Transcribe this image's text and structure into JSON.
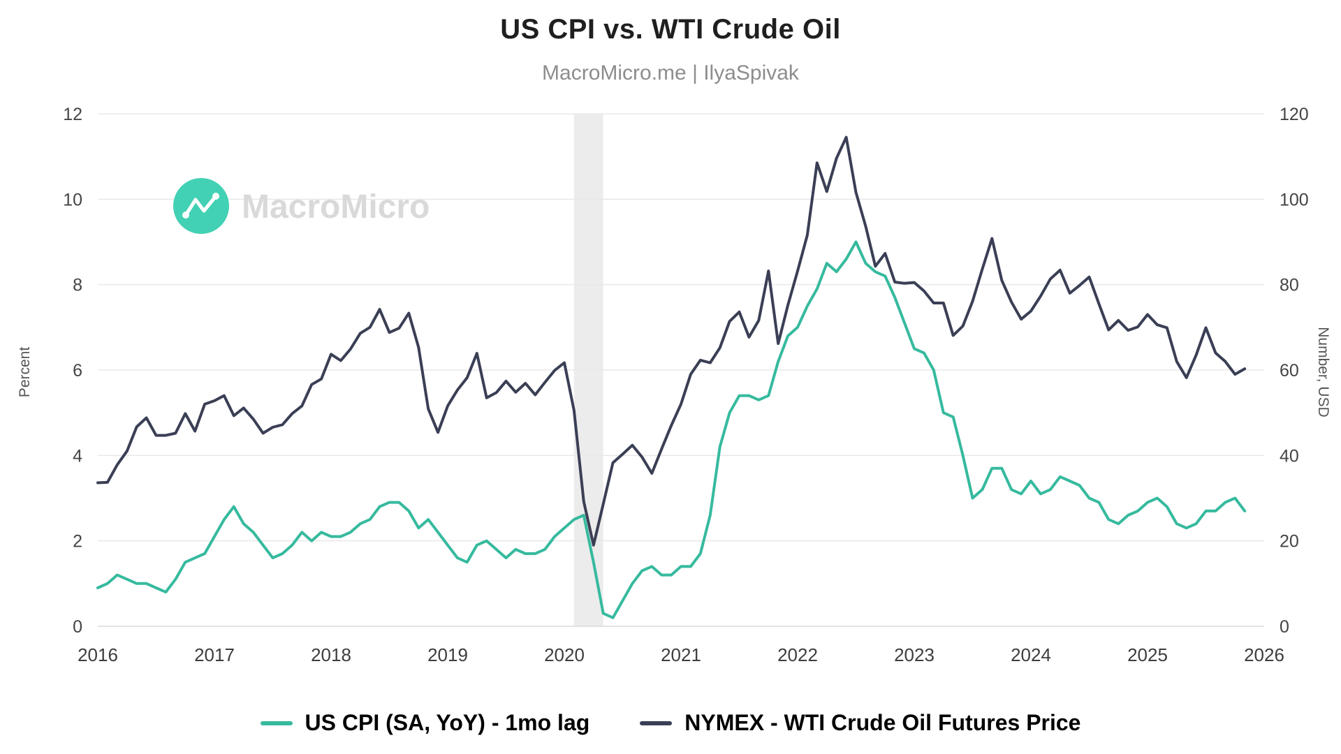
{
  "header": {
    "title": "US CPI vs. WTI Crude Oil",
    "subtitle": "MacroMicro.me | IlyaSpivak"
  },
  "watermark": {
    "text": "MacroMicro",
    "logo_color": "#42d1b4",
    "text_color": "#d9d9d9"
  },
  "chart_data": {
    "type": "line",
    "title": "US CPI vs. WTI Crude Oil",
    "subtitle": "MacroMicro.me | IlyaSpivak",
    "grid": "horizontal",
    "legend_position": "bottom",
    "x_axis": {
      "start_year": 2016,
      "end_year": 2026,
      "ticks": [
        2016,
        2017,
        2018,
        2019,
        2020,
        2021,
        2022,
        2023,
        2024,
        2025,
        2026
      ]
    },
    "left_axis": {
      "label": "Percent",
      "min": 0,
      "max": 12,
      "ticks": [
        0,
        2,
        4,
        6,
        8,
        10,
        12
      ]
    },
    "right_axis": {
      "label": "Number, USD",
      "min": 0,
      "max": 120,
      "ticks": [
        0,
        20,
        40,
        60,
        80,
        100,
        120
      ]
    },
    "recession_band": {
      "start": 2020.083,
      "end": 2020.333,
      "color": "#ececec"
    },
    "series": [
      {
        "name": "US CPI (SA, YoY) - 1mo lag",
        "axis": "left",
        "color": "#36ba9e",
        "frequency": "monthly",
        "start": "2016-01",
        "values": [
          0.9,
          1.0,
          1.2,
          1.1,
          1.0,
          1.0,
          0.9,
          0.8,
          1.1,
          1.5,
          1.6,
          1.7,
          2.1,
          2.5,
          2.8,
          2.4,
          2.2,
          1.9,
          1.6,
          1.7,
          1.9,
          2.2,
          2.0,
          2.2,
          2.1,
          2.1,
          2.2,
          2.4,
          2.5,
          2.8,
          2.9,
          2.9,
          2.7,
          2.3,
          2.5,
          2.2,
          1.9,
          1.6,
          1.5,
          1.9,
          2.0,
          1.8,
          1.6,
          1.8,
          1.7,
          1.7,
          1.8,
          2.1,
          2.3,
          2.5,
          2.6,
          1.5,
          0.3,
          0.2,
          0.6,
          1.0,
          1.3,
          1.4,
          1.2,
          1.2,
          1.4,
          1.4,
          1.7,
          2.6,
          4.2,
          5.0,
          5.4,
          5.4,
          5.3,
          5.4,
          6.2,
          6.8,
          7.0,
          7.5,
          7.9,
          8.5,
          8.3,
          8.6,
          9.0,
          8.5,
          8.3,
          8.2,
          7.7,
          7.1,
          6.5,
          6.4,
          6.0,
          5.0,
          4.9,
          4.0,
          3.0,
          3.2,
          3.7,
          3.7,
          3.2,
          3.1,
          3.4,
          3.1,
          3.2,
          3.5,
          3.4,
          3.3,
          3.0,
          2.9,
          2.5,
          2.4,
          2.6,
          2.7,
          2.9,
          3.0,
          2.8,
          2.4,
          2.3,
          2.4,
          2.7,
          2.7,
          2.9,
          3.0,
          2.7
        ]
      },
      {
        "name": "NYMEX - WTI Crude Oil Futures Price",
        "axis": "right",
        "color": "#3a3f55",
        "frequency": "monthly",
        "start": "2016-01",
        "values": [
          33.6,
          33.7,
          37.8,
          41.0,
          46.7,
          48.8,
          44.7,
          44.7,
          45.2,
          49.8,
          45.7,
          52.0,
          52.8,
          54.0,
          49.3,
          51.1,
          48.5,
          45.2,
          46.6,
          47.2,
          49.8,
          51.6,
          56.6,
          57.9,
          63.7,
          62.2,
          64.9,
          68.6,
          70.0,
          74.2,
          68.8,
          69.8,
          73.3,
          65.3,
          50.9,
          45.4,
          51.6,
          55.3,
          58.2,
          63.9,
          53.5,
          54.7,
          57.4,
          54.8,
          56.9,
          54.2,
          57.1,
          59.9,
          61.7,
          50.5,
          29.2,
          19.0,
          28.6,
          38.3,
          40.3,
          42.4,
          39.6,
          35.8,
          41.5,
          47.0,
          52.0,
          59.0,
          62.3,
          61.7,
          65.2,
          71.4,
          73.6,
          67.7,
          71.6,
          83.2,
          66.2,
          75.2,
          83.2,
          91.6,
          108.5,
          101.8,
          109.6,
          114.5,
          101.6,
          93.7,
          84.3,
          87.3,
          80.6,
          80.3,
          80.5,
          78.5,
          75.7,
          75.7,
          68.1,
          70.3,
          76.1,
          83.6,
          90.8,
          81.0,
          75.9,
          71.9,
          73.8,
          77.3,
          81.3,
          83.4,
          78.0,
          79.8,
          81.8,
          75.5,
          69.4,
          71.6,
          69.3,
          70.1,
          73.0,
          70.6,
          69.9,
          62.0,
          58.2,
          63.5,
          69.9,
          64.0,
          62.0,
          59.0,
          60.3
        ]
      }
    ]
  }
}
